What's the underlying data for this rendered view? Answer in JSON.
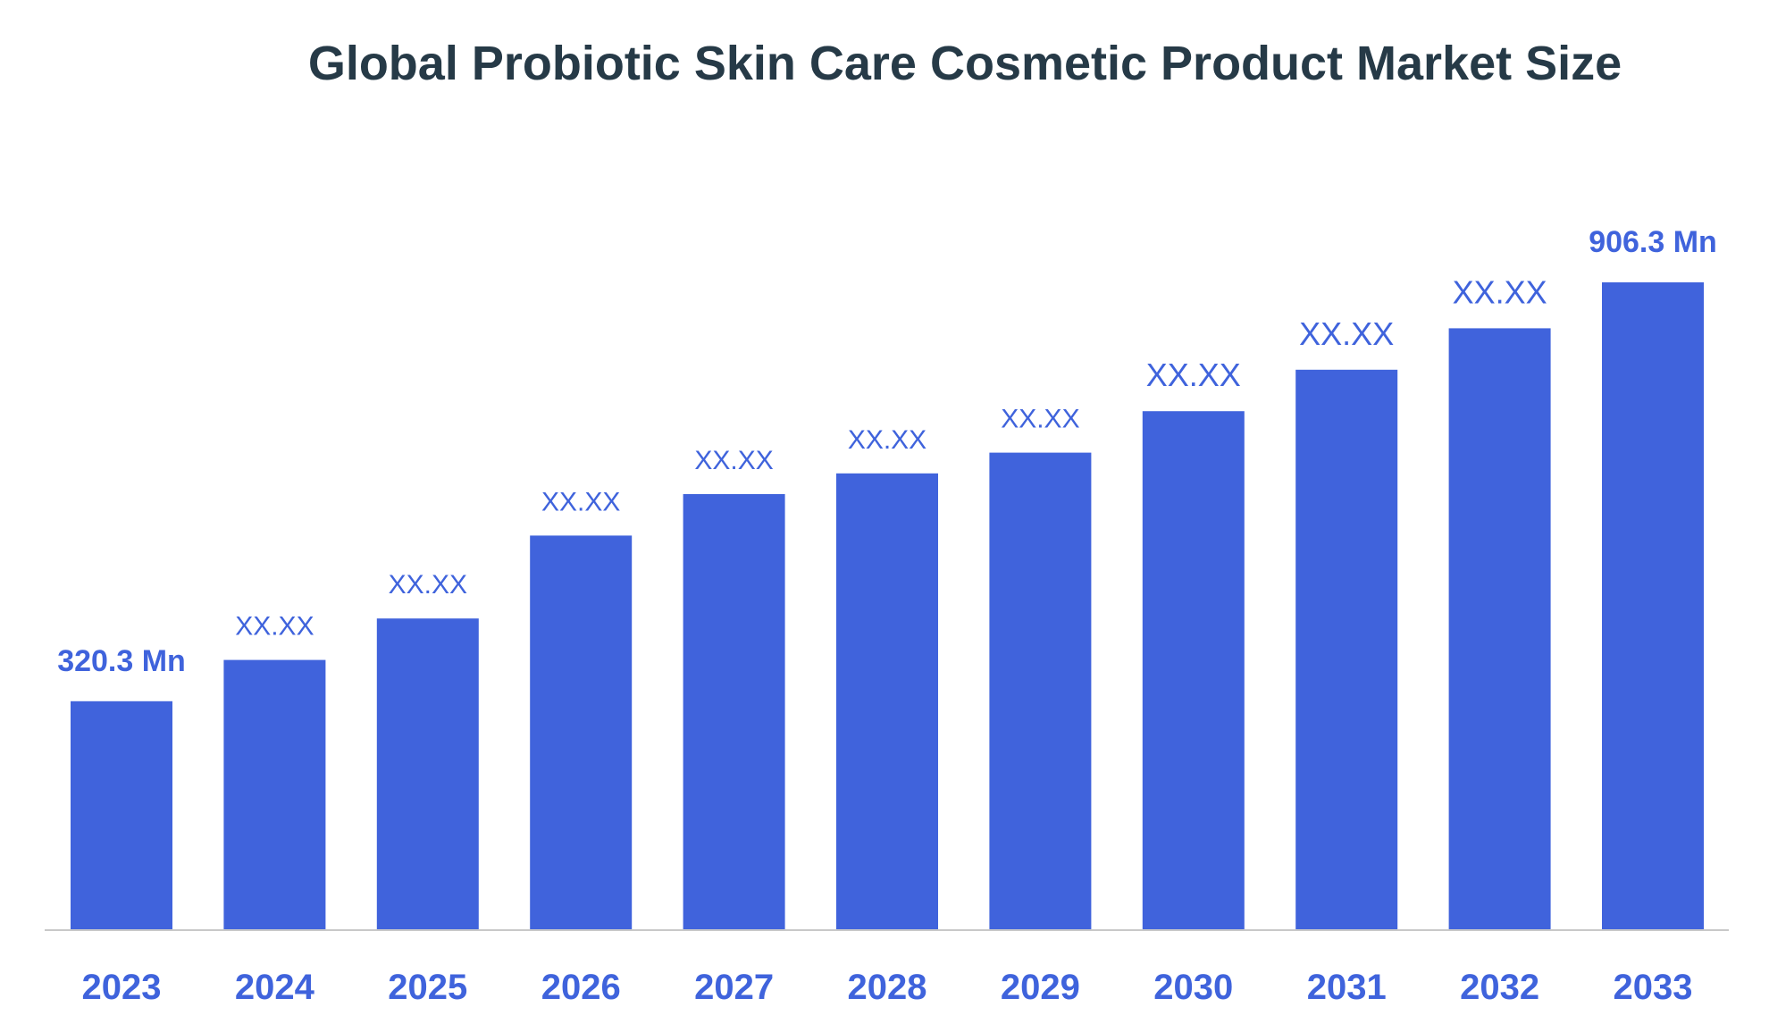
{
  "chart_data": {
    "type": "bar",
    "title": "Global Probiotic Skin Care Cosmetic Product Market Size",
    "xlabel": "",
    "ylabel": "",
    "categories": [
      "2023",
      "2024",
      "2025",
      "2026",
      "2027",
      "2028",
      "2029",
      "2030",
      "2031",
      "2032",
      "2033"
    ],
    "values": [
      320.3,
      378,
      436,
      552,
      610,
      639,
      668,
      726,
      784,
      842,
      906.3
    ],
    "data_labels": [
      "320.3 Mn",
      "XX.XX",
      "XX.XX",
      "XX.XX",
      "XX.XX",
      "XX.XX",
      "XX.XX",
      "XX.XX",
      "XX.XX",
      "XX.XX",
      "906.3 Mn"
    ],
    "ylim": [
      0,
      1000
    ],
    "grid": false,
    "legend": "none",
    "bar_color": "#4063dc",
    "label_color": "#3f63dc",
    "title_color": "#263a47"
  }
}
